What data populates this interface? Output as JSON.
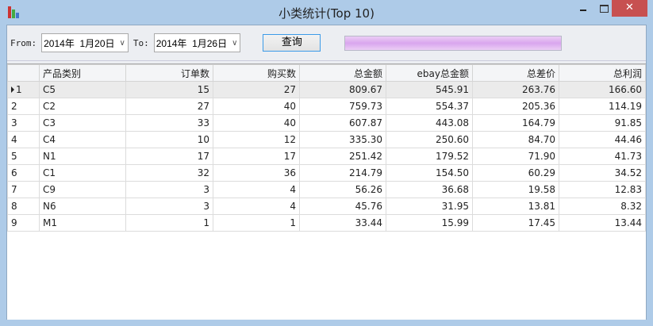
{
  "window": {
    "title": "小类统计(Top 10)",
    "close_glyph": "✕"
  },
  "toolbar": {
    "from_label": "From:",
    "from_value": "2014年  1月20日",
    "to_label": "To:",
    "to_value": "2014年  1月26日",
    "query_label": "查询",
    "progress_percent": 100
  },
  "table": {
    "columns": [
      "产品类别",
      "订单数",
      "购买数",
      "总金额",
      "ebay总金额",
      "总差价",
      "总利润"
    ],
    "rows": [
      [
        "1",
        "C5",
        "15",
        "27",
        "809.67",
        "545.91",
        "263.76",
        "166.60"
      ],
      [
        "2",
        "C2",
        "27",
        "40",
        "759.73",
        "554.37",
        "205.36",
        "114.19"
      ],
      [
        "3",
        "C3",
        "33",
        "40",
        "607.87",
        "443.08",
        "164.79",
        "91.85"
      ],
      [
        "4",
        "C4",
        "10",
        "12",
        "335.30",
        "250.60",
        "84.70",
        "44.46"
      ],
      [
        "5",
        "N1",
        "17",
        "17",
        "251.42",
        "179.52",
        "71.90",
        "41.73"
      ],
      [
        "6",
        "C1",
        "32",
        "36",
        "214.79",
        "154.50",
        "60.29",
        "34.52"
      ],
      [
        "7",
        "C9",
        "3",
        "4",
        "56.26",
        "36.68",
        "19.58",
        "12.83"
      ],
      [
        "8",
        "N6",
        "3",
        "4",
        "45.76",
        "31.95",
        "13.81",
        "8.32"
      ],
      [
        "9",
        "M1",
        "1",
        "1",
        "33.44",
        "15.99",
        "17.45",
        "13.44"
      ]
    ]
  }
}
